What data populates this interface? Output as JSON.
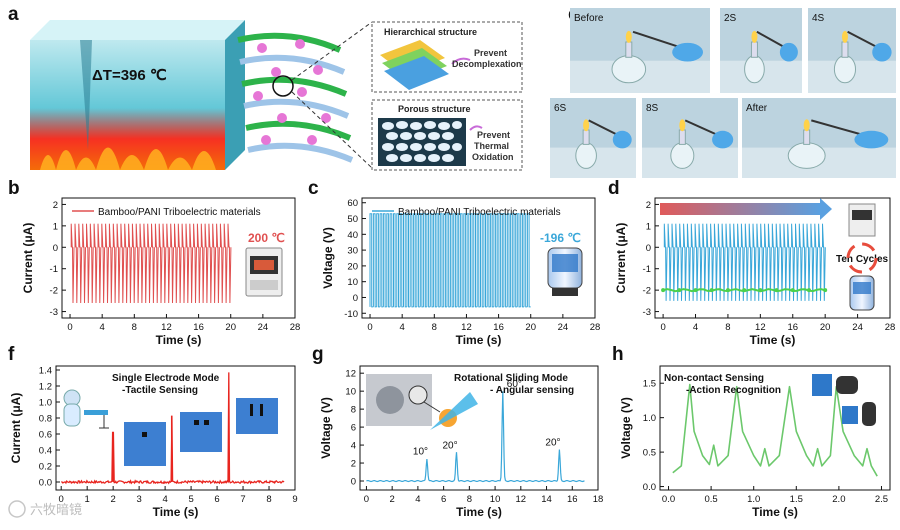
{
  "figure": {
    "panel_labels": {
      "a": "a",
      "b": "b",
      "c": "c",
      "d": "d",
      "e": "e",
      "f": "f",
      "g": "g",
      "h": "h"
    },
    "watermark": "六牧暗镜",
    "colors": {
      "red": "#e05050",
      "blue": "#3aa7d9",
      "green": "#6cc86c",
      "lightgreen": "#8fd68f",
      "brightred": "#e8251f"
    }
  },
  "panel_a": {
    "delta_t": "ΔT=396 ℃",
    "box1_title": "Hierarchical structure",
    "box1_note_l1": "Prevent",
    "box1_note_l2": "Decomplexation",
    "box2_title": "Porous structure",
    "box2_note_l1": "Prevent",
    "box2_note_l2": "Thermal",
    "box2_note_l3": "Oxidation"
  },
  "panel_e": {
    "frames": [
      "Before",
      "2S",
      "4S",
      "6S",
      "8S",
      "After"
    ]
  },
  "chart_data": [
    {
      "id": "b",
      "type": "line",
      "legend": "Bamboo/PANI Triboelectric materials",
      "annotation": "200 ℃",
      "xlabel": "Time (s)",
      "ylabel": "Current (μA)",
      "xlim": [
        -1,
        28
      ],
      "ylim": [
        -3.3,
        2.3
      ],
      "xticks": [
        "0",
        "4",
        "8",
        "12",
        "16",
        "20",
        "24",
        "28"
      ],
      "yticks": [
        "-3",
        "-2",
        "-1",
        "0",
        "1",
        "2"
      ],
      "x_start": 0,
      "x_end": 20,
      "pulses": 42,
      "peak_high": 1.1,
      "peak_low": -2.6,
      "color": "#e05050"
    },
    {
      "id": "c",
      "type": "line",
      "legend": "Bamboo/PANI Triboelectric materials",
      "annotation": "-196 ℃",
      "xlabel": "Time (s)",
      "ylabel": "Voltage (V)",
      "xlim": [
        -1,
        28
      ],
      "ylim": [
        -13,
        63
      ],
      "xticks": [
        "0",
        "4",
        "8",
        "12",
        "16",
        "20",
        "24",
        "28"
      ],
      "yticks": [
        "-10",
        "0",
        "10",
        "20",
        "30",
        "40",
        "50",
        "60"
      ],
      "x_start": 0,
      "x_end": 20,
      "pulses": 48,
      "high": 53,
      "low": -6,
      "color": "#3aa7d9"
    },
    {
      "id": "d",
      "type": "line",
      "annotation": "Ten Cycles",
      "xlabel": "Time (s)",
      "ylabel": "Current (μA)",
      "xlim": [
        -1,
        28
      ],
      "ylim": [
        -3.3,
        2.3
      ],
      "xticks": [
        "0",
        "4",
        "8",
        "12",
        "16",
        "20",
        "24",
        "28"
      ],
      "yticks": [
        "-3",
        "-2",
        "-1",
        "0",
        "1",
        "2"
      ],
      "x_start": 0,
      "x_end": 20,
      "pulses": 42,
      "peak_high": 1.1,
      "peak_low": -2.5,
      "baseline_level": -2.0,
      "color": "#3aa7d9",
      "baseline_color": "#4cd14c"
    },
    {
      "id": "f",
      "type": "line",
      "title_l1": "Single Electrode Mode",
      "title_l2": "-Tactile Sensing",
      "xlabel": "Time (s)",
      "ylabel": "Current (μA)",
      "xlim": [
        -0.2,
        9
      ],
      "ylim": [
        -0.1,
        1.45
      ],
      "xticks": [
        "0",
        "1",
        "2",
        "3",
        "4",
        "5",
        "6",
        "7",
        "8",
        "9"
      ],
      "yticks": [
        "0.0",
        "0.2",
        "0.4",
        "0.6",
        "0.8",
        "1.0",
        "1.2",
        "1.4"
      ],
      "spikes": [
        {
          "x": 2.0,
          "y": 0.62
        },
        {
          "x": 4.25,
          "y": 0.83
        },
        {
          "x": 6.45,
          "y": 1.37
        }
      ],
      "noise": 0.015,
      "color": "#e8251f"
    },
    {
      "id": "g",
      "type": "line",
      "title_l1": "Rotational Sliding Mode",
      "title_l2": "- Angular sensing",
      "xlabel": "Time (s)",
      "ylabel": "Voltage (V)",
      "xlim": [
        -0.5,
        18
      ],
      "ylim": [
        -1,
        12.8
      ],
      "xticks": [
        "0",
        "2",
        "4",
        "6",
        "8",
        "10",
        "12",
        "14",
        "16",
        "18"
      ],
      "yticks": [
        "0",
        "2",
        "4",
        "6",
        "8",
        "10",
        "12"
      ],
      "peaks": [
        {
          "x": 4.7,
          "y": 2.5,
          "label": "10°"
        },
        {
          "x": 7.0,
          "y": 3.2,
          "label": "20°"
        },
        {
          "x": 10.6,
          "y": 10.0,
          "label": "60°"
        },
        {
          "x": 15.0,
          "y": 3.5,
          "label": "20°"
        }
      ],
      "color": "#3aa7d9"
    },
    {
      "id": "h",
      "type": "line",
      "title_l1": "Non-contact Sensing",
      "title_l2": "-Action Recognition",
      "xlabel": "Time (s)",
      "ylabel": "Voltage (V)",
      "xlim": [
        -0.1,
        2.6
      ],
      "ylim": [
        -0.05,
        1.75
      ],
      "xticks": [
        "0.0",
        "0.5",
        "1.0",
        "1.5",
        "2.0",
        "2.5"
      ],
      "yticks": [
        "0.0",
        "0.5",
        "1.0",
        "1.5"
      ],
      "points": [
        [
          0.05,
          0.2
        ],
        [
          0.15,
          0.3
        ],
        [
          0.25,
          1.48
        ],
        [
          0.3,
          0.8
        ],
        [
          0.4,
          0.45
        ],
        [
          0.48,
          0.32
        ],
        [
          0.53,
          0.6
        ],
        [
          0.58,
          0.3
        ],
        [
          0.7,
          0.45
        ],
        [
          0.8,
          1.45
        ],
        [
          0.87,
          0.8
        ],
        [
          1.0,
          0.45
        ],
        [
          1.08,
          0.3
        ],
        [
          1.13,
          0.55
        ],
        [
          1.18,
          0.3
        ],
        [
          1.3,
          0.45
        ],
        [
          1.42,
          1.45
        ],
        [
          1.5,
          0.8
        ],
        [
          1.62,
          0.45
        ],
        [
          1.7,
          0.3
        ],
        [
          1.75,
          0.55
        ],
        [
          1.8,
          0.3
        ],
        [
          1.9,
          0.45
        ],
        [
          1.97,
          1.45
        ],
        [
          2.05,
          0.8
        ],
        [
          2.18,
          0.45
        ],
        [
          2.28,
          0.3
        ],
        [
          2.33,
          0.55
        ],
        [
          2.38,
          0.3
        ],
        [
          2.45,
          0.15
        ]
      ],
      "color": "#6cc86c"
    }
  ]
}
